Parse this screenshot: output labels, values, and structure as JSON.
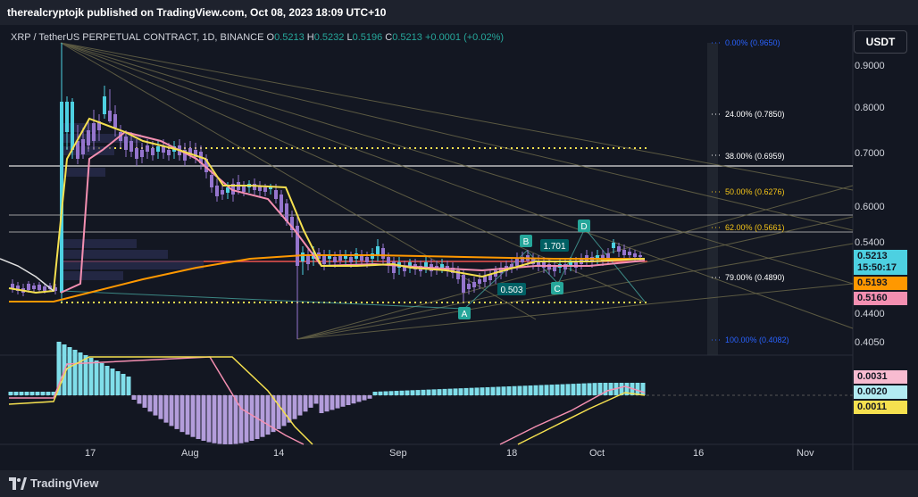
{
  "header": {
    "published_text": "therealcryptojk published on TradingView.com, Oct 08, 2023 18:09 UTC+10"
  },
  "legend": {
    "symbol": "XRP / TetherUS PERPETUAL CONTRACT, 1D, BINANCE",
    "open_label": "O",
    "open": "0.5213",
    "high_label": "H",
    "high": "0.5232",
    "low_label": "L",
    "low": "0.5196",
    "close_label": "C",
    "close": "0.5213",
    "change": "+0.0001 (+0.02%)"
  },
  "currency_button": "USDT",
  "price_axis": {
    "ticks": [
      "0.9000",
      "0.8000",
      "0.7000",
      "0.6000",
      "0.5400",
      "0.4400",
      "0.4050"
    ],
    "last_price": "0.5213",
    "countdown": "15:50:17",
    "tag_orange": "0.5193",
    "tag_pink": "0.5160"
  },
  "oscillator_axis": {
    "tag_pink": "0.0031",
    "tag_blue": "0.0020",
    "tag_yellow": "0.0011"
  },
  "fib_levels": [
    {
      "label": "0.00% (0.9650)",
      "color": "#2962ff"
    },
    {
      "label": "24.00% (0.7850)",
      "color": "#ffffff"
    },
    {
      "label": "38.00% (0.6959)",
      "color": "#ffffff"
    },
    {
      "label": "50.00% (0.6276)",
      "color": "#f5c518"
    },
    {
      "label": "62.00% (0.5661)",
      "color": "#f5c518"
    },
    {
      "label": "79.00% (0.4890)",
      "color": "#ffffff"
    },
    {
      "label": "100.00% (0.4082)",
      "color": "#2962ff"
    }
  ],
  "annotations": {
    "a": "A",
    "b": "B",
    "c": "C",
    "d": "D",
    "box_1701": "1.701",
    "box_0503": "0.503"
  },
  "time_axis": [
    "17",
    "Aug",
    "14",
    "Sep",
    "18",
    "Oct",
    "16",
    "Nov"
  ],
  "footer": {
    "brand": "TradingView"
  },
  "colors": {
    "background": "#131722",
    "up": "#26a69a",
    "down": "#ef5350",
    "candle_up": "#4dd0e1",
    "candle_down": "#9575cd",
    "ma_yellow": "#f5e04f",
    "ma_pink": "#f48fb1",
    "ma_orange": "#ff9800",
    "histogram_pos": "#80deea",
    "histogram_neg": "#b39ddb"
  }
}
